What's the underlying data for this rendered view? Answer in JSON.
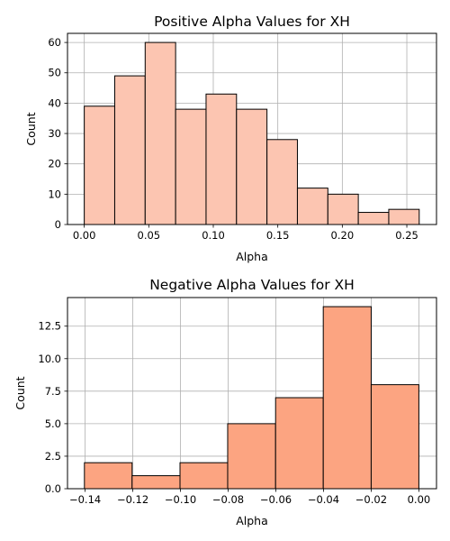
{
  "chart_data": [
    {
      "type": "bar",
      "title": "Positive Alpha Values for XH",
      "xlabel": "Alpha",
      "ylabel": "Count",
      "bar_color": "#fcc5b1",
      "edge_color": "#000000",
      "grid": true,
      "xlim": [
        -0.013,
        0.273
      ],
      "ylim": [
        0,
        63
      ],
      "x_ticks": [
        0.0,
        0.05,
        0.1,
        0.15,
        0.2,
        0.25
      ],
      "x_tick_labels": [
        "0.00",
        "0.05",
        "0.10",
        "0.15",
        "0.20",
        "0.25"
      ],
      "y_ticks": [
        0,
        10,
        20,
        30,
        40,
        50,
        60
      ],
      "y_tick_labels": [
        "0",
        "10",
        "20",
        "30",
        "40",
        "50",
        "60"
      ],
      "bins": [
        {
          "start": 0.0,
          "end": 0.0236,
          "count": 39
        },
        {
          "start": 0.0236,
          "end": 0.0472,
          "count": 49
        },
        {
          "start": 0.0472,
          "end": 0.0708,
          "count": 60
        },
        {
          "start": 0.0708,
          "end": 0.0944,
          "count": 38
        },
        {
          "start": 0.0944,
          "end": 0.118,
          "count": 43
        },
        {
          "start": 0.118,
          "end": 0.1416,
          "count": 38
        },
        {
          "start": 0.1416,
          "end": 0.1652,
          "count": 28
        },
        {
          "start": 0.1652,
          "end": 0.1888,
          "count": 12
        },
        {
          "start": 0.1888,
          "end": 0.2124,
          "count": 10
        },
        {
          "start": 0.2124,
          "end": 0.236,
          "count": 4
        },
        {
          "start": 0.236,
          "end": 0.2596,
          "count": 5
        }
      ]
    },
    {
      "type": "bar",
      "title": "Negative Alpha Values for XH",
      "xlabel": "Alpha",
      "ylabel": "Count",
      "bar_color": "#fca481",
      "edge_color": "#000000",
      "grid": true,
      "xlim": [
        -0.1474,
        0.0074
      ],
      "ylim": [
        0,
        14.7
      ],
      "x_ticks": [
        -0.14,
        -0.12,
        -0.1,
        -0.08,
        -0.06,
        -0.04,
        -0.02,
        0.0
      ],
      "x_tick_labels": [
        "−0.14",
        "−0.12",
        "−0.10",
        "−0.08",
        "−0.06",
        "−0.04",
        "−0.02",
        "0.00"
      ],
      "y_ticks": [
        0,
        2.5,
        5,
        7.5,
        10,
        12.5
      ],
      "y_tick_labels": [
        "0.0",
        "2.5",
        "5.0",
        "7.5",
        "10.0",
        "12.5"
      ],
      "bins": [
        {
          "start": -0.1403,
          "end": -0.1203,
          "count": 2
        },
        {
          "start": -0.1203,
          "end": -0.1002,
          "count": 1
        },
        {
          "start": -0.1002,
          "end": -0.0802,
          "count": 2
        },
        {
          "start": -0.0802,
          "end": -0.0601,
          "count": 5
        },
        {
          "start": -0.0601,
          "end": -0.0401,
          "count": 7
        },
        {
          "start": -0.0401,
          "end": -0.02,
          "count": 14
        },
        {
          "start": -0.02,
          "end": 0.0,
          "count": 8
        }
      ]
    }
  ]
}
